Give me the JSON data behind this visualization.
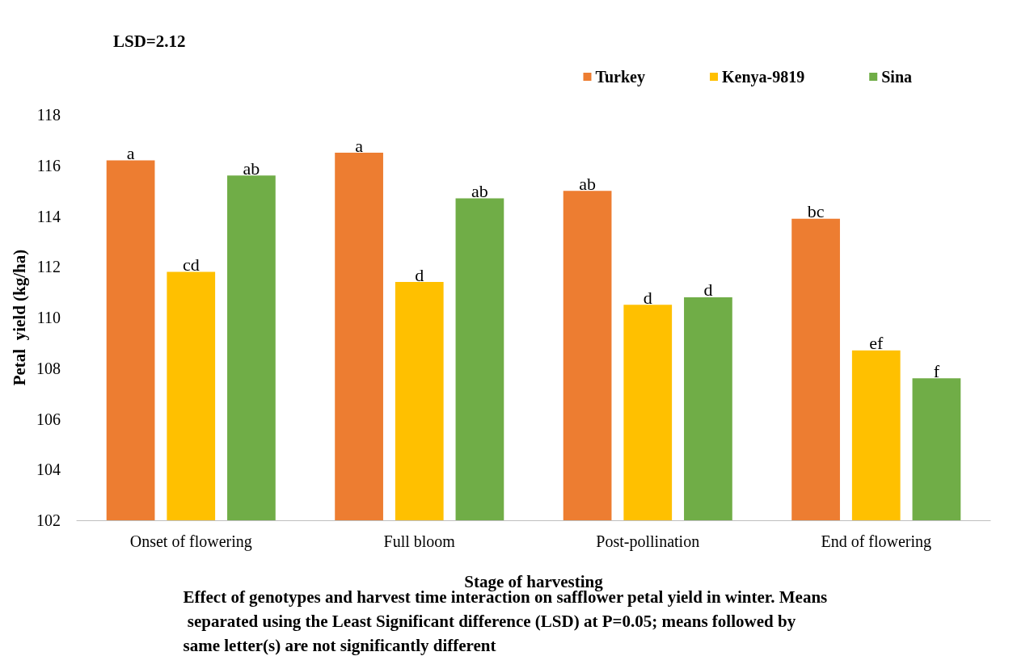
{
  "chart_data": {
    "type": "bar",
    "categories": [
      "Onset of flowering",
      "Full bloom",
      "Post-pollination",
      "End of flowering"
    ],
    "series": [
      {
        "name": "Turkey",
        "color": "#ed7d31",
        "values": [
          116.2,
          116.5,
          115.0,
          113.9
        ],
        "value_labels": [
          "a",
          "a",
          "ab",
          "bc"
        ]
      },
      {
        "name": "Kenya-9819",
        "color": "#ffc000",
        "values": [
          111.8,
          111.4,
          110.5,
          108.7
        ],
        "value_labels": [
          "cd",
          "d",
          "d",
          "ef"
        ]
      },
      {
        "name": "Sina",
        "color": "#70ad47",
        "values": [
          115.6,
          114.7,
          110.8,
          107.6
        ],
        "value_labels": [
          "ab",
          "ab",
          "d",
          "f"
        ]
      }
    ],
    "xlabel": "Stage of harvesting",
    "ylabel": "Petal  yield (kg/ha)",
    "ylim": [
      102,
      118
    ],
    "yticks": [
      102,
      104,
      106,
      108,
      110,
      112,
      114,
      116,
      118
    ],
    "grid": false,
    "legend": "top right",
    "annotations": [
      "LSD=2.12",
      "Effect of genotypes and harvest time interaction on safflower petal yield in winter. Means separated using the Least Significant difference (LSD) at P=0.05; means followed by same letter(s) are not significantly different"
    ]
  }
}
